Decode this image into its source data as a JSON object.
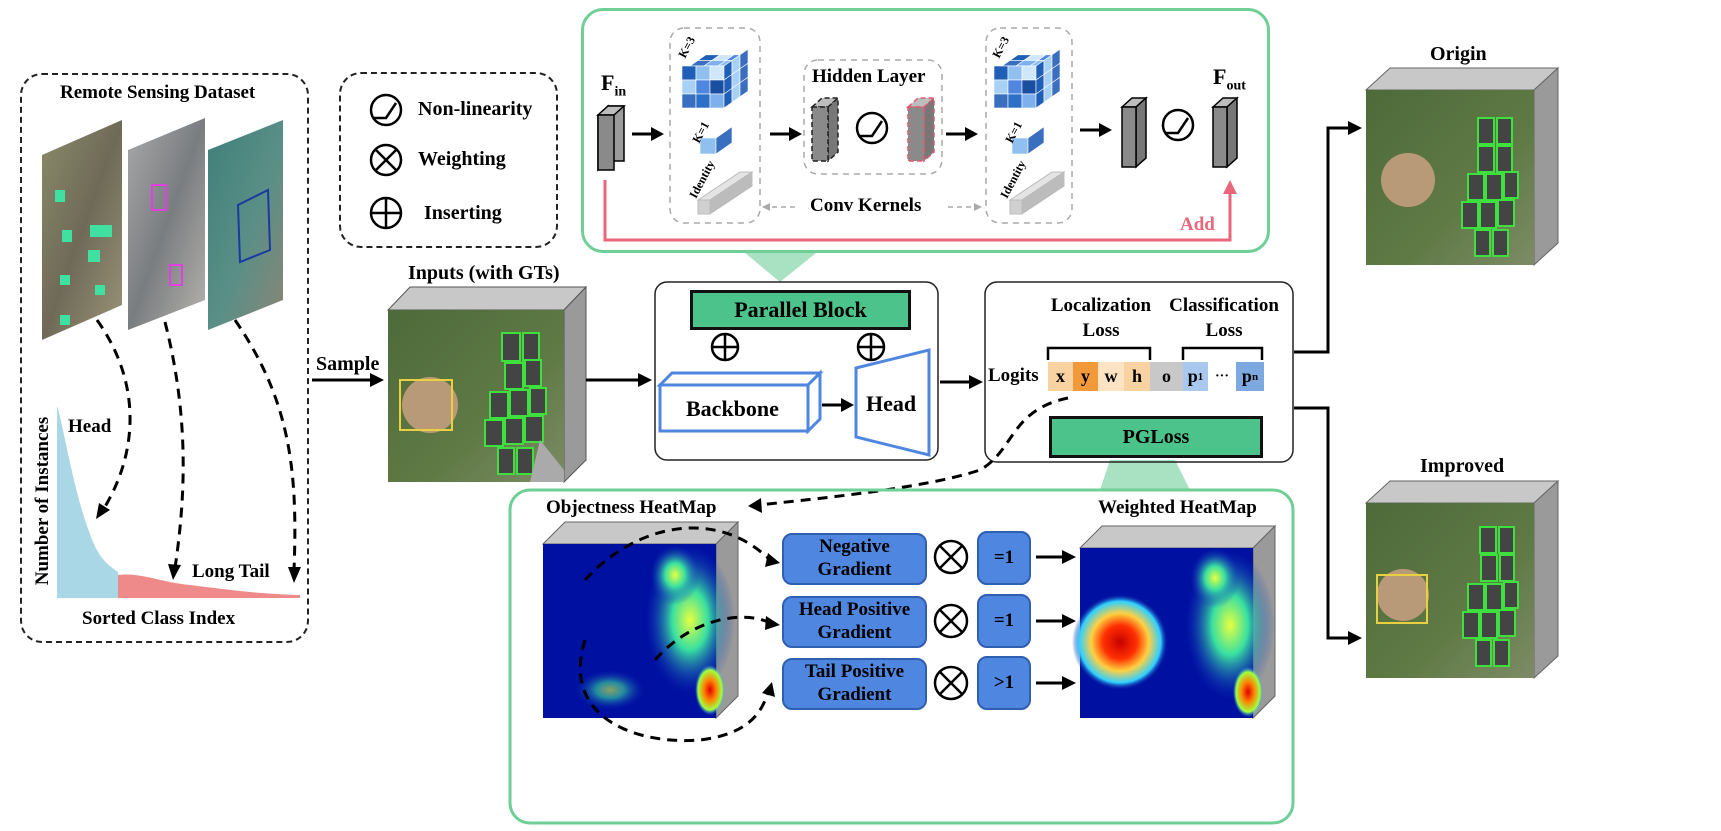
{
  "dataset": {
    "title": "Remote Sensing Dataset",
    "ylabel": "Number of Instances",
    "xlabel": "Sorted Class Index",
    "head_label": "Head",
    "tail_label": "Long Tail"
  },
  "legend": {
    "nonlinearity": "Non-linearity",
    "weighting": "Weighting",
    "inserting": "Inserting"
  },
  "inputs": {
    "title": "Inputs (with GTs)",
    "sample_label": "Sample"
  },
  "conv": {
    "fin": "F",
    "fin_sub": "in",
    "fout": "F",
    "fout_sub": "out",
    "k3": "K=3",
    "k1": "K=1",
    "identity": "Identity",
    "hidden_layer": "Hidden Layer",
    "conv_kernels": "Conv Kernels",
    "add": "Add"
  },
  "model": {
    "parallel_block": "Parallel Block",
    "backbone": "Backbone",
    "head": "Head"
  },
  "loss": {
    "localization_line1": "Localization",
    "localization_line2": "Loss",
    "classification_line1": "Classification",
    "classification_line2": "Loss",
    "logits": "Logits",
    "cells": [
      "x",
      "y",
      "w",
      "h",
      "o"
    ],
    "p1": "p",
    "p1_sub": "1",
    "dots": "···",
    "pn": "p",
    "pn_sub": "n",
    "pgloss": "PGLoss"
  },
  "heatmap": {
    "objectness_title": "Objectness HeatMap",
    "weighted_title": "Weighted HeatMap",
    "rows": [
      {
        "line1": "Negative",
        "line2": "Gradient",
        "factor": "=1"
      },
      {
        "line1": "Head Positive",
        "line2": "Gradient",
        "factor": "=1"
      },
      {
        "line1": "Tail Positive",
        "line2": "Gradient",
        "factor": ">1"
      }
    ]
  },
  "outputs": {
    "origin": "Origin",
    "improved": "Improved"
  },
  "colors": {
    "green_border": "#6fcf97",
    "green_fill": "#4cc38a",
    "blue_fill": "#4f86e0",
    "add_red": "#e8677a",
    "head_area": "#a9d7e6",
    "tail_area": "#ef8a8a"
  }
}
